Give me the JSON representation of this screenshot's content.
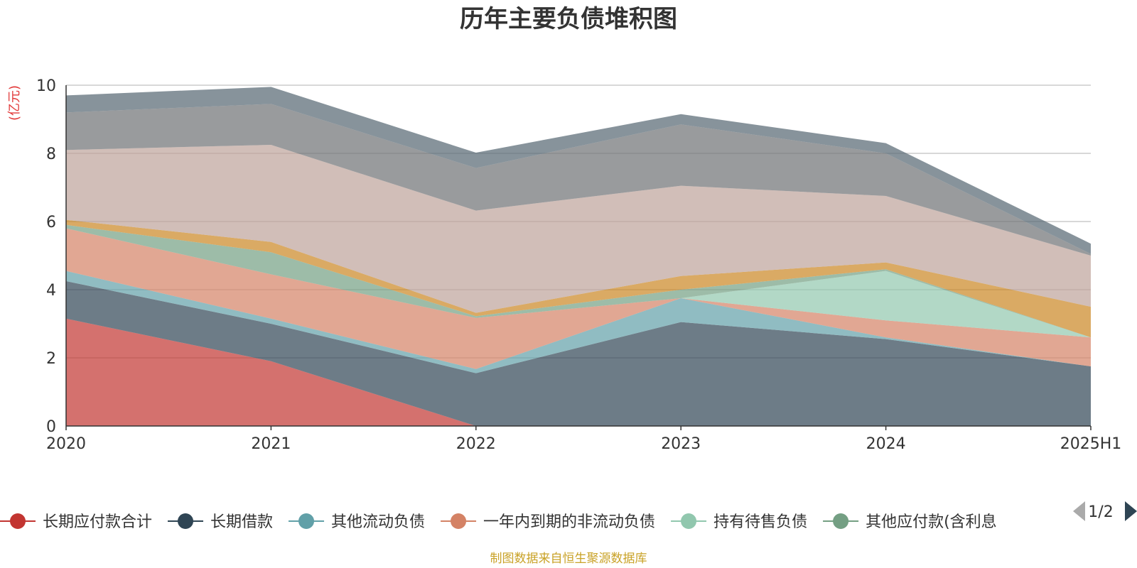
{
  "chart_data": {
    "type": "area",
    "stacked": true,
    "title": "历年主要负债堆积图",
    "unit_label": "(亿元)",
    "x": [
      "2020",
      "2021",
      "2022",
      "2023",
      "2024",
      "2025H1"
    ],
    "y_ticks": [
      "0",
      "2",
      "4",
      "6",
      "8",
      "10"
    ],
    "ylim": [
      0,
      10
    ],
    "grid": true,
    "legend_position": "bottom",
    "series": [
      {
        "name": "长期应付款合计",
        "color": "#c23531",
        "values": [
          3.15,
          1.9,
          0.0,
          0.0,
          0.0,
          0.0
        ]
      },
      {
        "name": "长期借款",
        "color": "#2f4554",
        "values": [
          1.1,
          1.1,
          1.55,
          3.05,
          2.55,
          1.75
        ]
      },
      {
        "name": "其他流动负债",
        "color": "#61a0a8",
        "values": [
          0.3,
          0.15,
          0.12,
          0.7,
          0.05,
          0.0
        ]
      },
      {
        "name": "一年内到期的非流动负债",
        "color": "#d48265",
        "values": [
          1.25,
          1.3,
          1.5,
          0.0,
          0.5,
          0.85
        ]
      },
      {
        "name": "持有待售负债",
        "color": "#91c7ae",
        "values": [
          0.0,
          0.0,
          0.0,
          0.0,
          1.45,
          0.0
        ]
      },
      {
        "name": "其他应付款(含利息",
        "color": "#749f83",
        "values": [
          0.1,
          0.65,
          0.05,
          0.25,
          0.05,
          0.0
        ]
      },
      {
        "name": "",
        "color": "#ca8622",
        "values": [
          0.15,
          0.3,
          0.1,
          0.4,
          0.2,
          0.9
        ]
      },
      {
        "name": "",
        "color": "#bda29a",
        "values": [
          2.05,
          2.85,
          3.0,
          2.65,
          1.95,
          1.5
        ]
      },
      {
        "name": "",
        "color": "#6e7074",
        "values": [
          1.1,
          1.2,
          1.25,
          1.8,
          1.25,
          0.05
        ]
      },
      {
        "name": "",
        "color": "#546570",
        "values": [
          0.5,
          0.5,
          0.45,
          0.3,
          0.3,
          0.3
        ]
      }
    ]
  },
  "legend": {
    "page_indicator": "1/2"
  },
  "source_note": "制图数据来自恒生聚源数据库"
}
